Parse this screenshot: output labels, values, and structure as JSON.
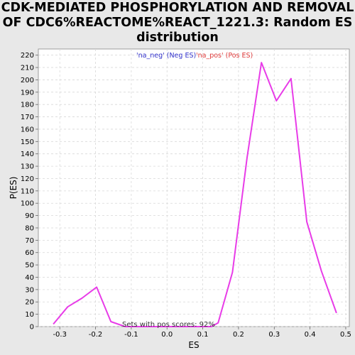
{
  "chart_data": {
    "type": "line",
    "title_lines": [
      "CDK-MEDIATED PHOSPHORYLATION AND REMOVAL",
      "OF CDC6%REACTOME%REACT_1221.3: Random ES",
      "distribution"
    ],
    "xlabel": "ES",
    "ylabel": "P(ES)",
    "xlim": [
      -0.36,
      0.51
    ],
    "ylim": [
      0,
      225
    ],
    "x_ticks": [
      "-0.3",
      "-0.2",
      "-0.1",
      "0.0",
      "0.1",
      "0.2",
      "0.3",
      "0.4",
      "0.5"
    ],
    "y_ticks": [
      "0",
      "10",
      "20",
      "30",
      "40",
      "50",
      "60",
      "70",
      "80",
      "90",
      "100",
      "110",
      "120",
      "130",
      "140",
      "150",
      "160",
      "170",
      "180",
      "190",
      "200",
      "210",
      "220"
    ],
    "grid": true,
    "legend_placement": "top-center",
    "legend": [
      {
        "label": "'na_neg' (Neg ES)",
        "color": "#3333cc"
      },
      {
        "label": "'na_pos' (Pos ES)",
        "color": "#e03c3c"
      }
    ],
    "series": [
      {
        "color": "#e83ce8",
        "x": [
          -0.318,
          -0.278,
          -0.238,
          -0.197,
          -0.157,
          -0.117,
          -0.077,
          -0.037,
          0.003,
          0.043,
          0.084,
          0.124,
          0.143,
          0.183,
          0.224,
          0.264,
          0.306,
          0.347,
          0.391,
          0.432,
          0.474
        ],
        "y": [
          2,
          16,
          23,
          32,
          4,
          0,
          0,
          0,
          0,
          0,
          0,
          0,
          3,
          44,
          137,
          214,
          183,
          201,
          85,
          45,
          11
        ]
      }
    ],
    "annotation": "Sets with pos scores: 92%"
  },
  "colors": {
    "background": "#e8e8e8",
    "plot_background": "#ffffff",
    "grid": "#d8d8d8",
    "line": "#e83ce8"
  }
}
